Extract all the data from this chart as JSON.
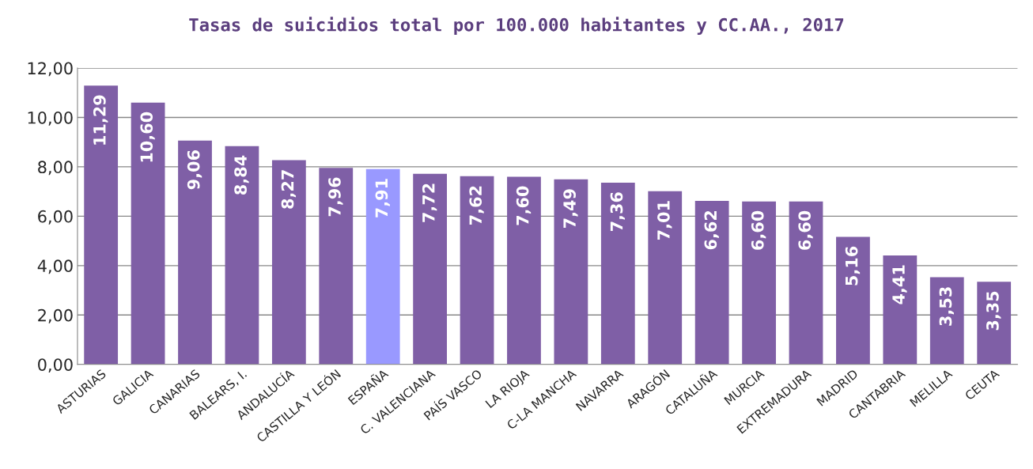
{
  "chart_data": {
    "type": "bar",
    "title": "Tasas de suicidios total por 100.000 habitantes y CC.AA., 2017",
    "categories": [
      "ASTURIAS",
      "GALICIA",
      "CANARIAS",
      "BALEARS, I.",
      "ANDALUCÍA",
      "CASTILLA Y LEÓN",
      "ESPAÑA",
      "C. VALENCIANA",
      "PAÍS VASCO",
      "LA RIOJA",
      "C-LA MANCHA",
      "NAVARRA",
      "ARAGÓN",
      "CATALUÑA",
      "MURCIA",
      "EXTREMADURA",
      "MADRID",
      "CANTABRIA",
      "MELILLA",
      "CEUTA"
    ],
    "values": [
      11.29,
      10.6,
      9.06,
      8.84,
      8.27,
      7.96,
      7.91,
      7.72,
      7.62,
      7.6,
      7.49,
      7.36,
      7.01,
      6.62,
      6.6,
      6.6,
      5.16,
      4.41,
      3.53,
      3.35
    ],
    "value_labels": [
      "11,29",
      "10,60",
      "9,06",
      "8,84",
      "8,27",
      "7,96",
      "7,91",
      "7,72",
      "7,62",
      "7,60",
      "7,49",
      "7,36",
      "7,01",
      "6,62",
      "6,60",
      "6,60",
      "5,16",
      "4,41",
      "3,53",
      "3,35"
    ],
    "colors": [
      "#7f5fa6",
      "#7f5fa6",
      "#7f5fa6",
      "#7f5fa6",
      "#7f5fa6",
      "#7f5fa6",
      "#9999ff",
      "#7f5fa6",
      "#7f5fa6",
      "#7f5fa6",
      "#7f5fa6",
      "#7f5fa6",
      "#7f5fa6",
      "#7f5fa6",
      "#7f5fa6",
      "#7f5fa6",
      "#7f5fa6",
      "#7f5fa6",
      "#7f5fa6",
      "#7f5fa6"
    ],
    "ylim": [
      0,
      12
    ],
    "yticks": [
      {
        "value": 0,
        "label": "0,00"
      },
      {
        "value": 2,
        "label": "2,00"
      },
      {
        "value": 4,
        "label": "4,00"
      },
      {
        "value": 6,
        "label": "6,00"
      },
      {
        "value": 8,
        "label": "8,00"
      },
      {
        "value": 10,
        "label": "10,00"
      },
      {
        "value": 12,
        "label": "12,00"
      }
    ],
    "grid": "y",
    "legend": false
  }
}
